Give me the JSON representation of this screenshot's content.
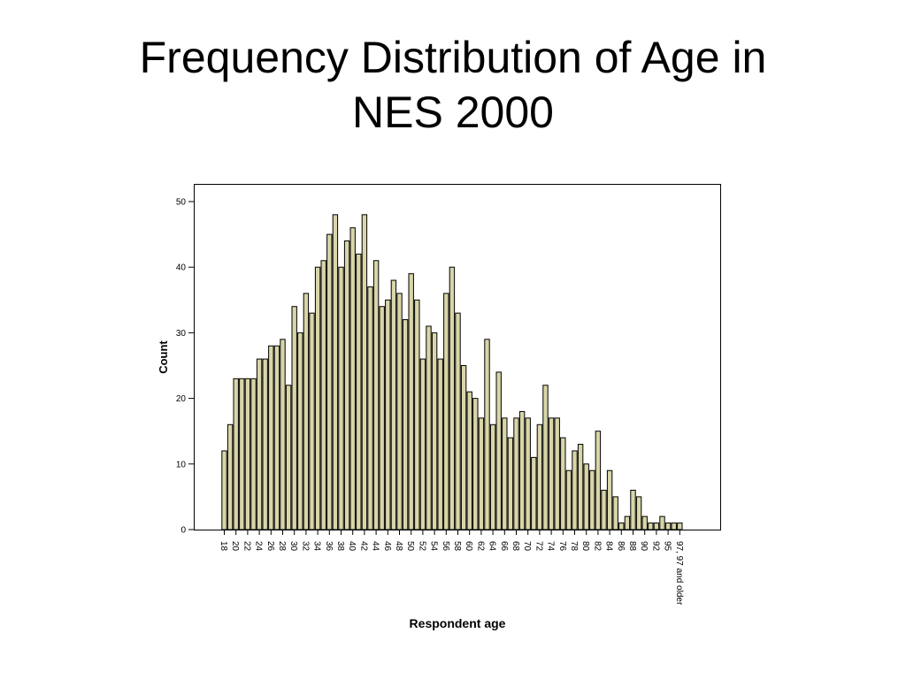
{
  "slide": {
    "title_line1": "Frequency Distribution of Age in",
    "title_line2": "NES 2000"
  },
  "colors": {
    "bar_fill": "#d8d5a8",
    "bar_stroke": "#000000",
    "background": "#ffffff"
  },
  "chart_data": {
    "type": "bar",
    "title": "",
    "xlabel": "Respondent age",
    "ylabel": "Count",
    "ylim": [
      0,
      50
    ],
    "yticks": [
      0,
      10,
      20,
      30,
      40,
      50
    ],
    "grid": false,
    "categories": [
      "18",
      "19",
      "20",
      "21",
      "22",
      "23",
      "24",
      "25",
      "26",
      "27",
      "28",
      "29",
      "30",
      "31",
      "32",
      "33",
      "34",
      "35",
      "36",
      "37",
      "38",
      "39",
      "40",
      "41",
      "42",
      "43",
      "44",
      "45",
      "46",
      "47",
      "48",
      "49",
      "50",
      "51",
      "52",
      "53",
      "54",
      "55",
      "56",
      "57",
      "58",
      "59",
      "60",
      "61",
      "62",
      "63",
      "64",
      "65",
      "66",
      "67",
      "68",
      "69",
      "70",
      "71",
      "72",
      "73",
      "74",
      "75",
      "76",
      "77",
      "78",
      "79",
      "80",
      "81",
      "82",
      "83",
      "84",
      "85",
      "86",
      "87",
      "88",
      "89",
      "90",
      "91",
      "92",
      "93",
      "95",
      "96",
      "97, 97 and older"
    ],
    "x_tick_labels": [
      "18",
      "20",
      "22",
      "24",
      "26",
      "28",
      "30",
      "32",
      "34",
      "36",
      "38",
      "40",
      "42",
      "44",
      "46",
      "48",
      "50",
      "52",
      "54",
      "56",
      "58",
      "60",
      "62",
      "64",
      "66",
      "68",
      "70",
      "72",
      "74",
      "76",
      "78",
      "80",
      "82",
      "84",
      "86",
      "88",
      "90",
      "92",
      "95",
      "97, 97 and older"
    ],
    "values": [
      12,
      16,
      23,
      23,
      23,
      23,
      26,
      26,
      28,
      28,
      29,
      22,
      34,
      30,
      36,
      33,
      40,
      41,
      45,
      48,
      40,
      44,
      46,
      42,
      48,
      37,
      41,
      34,
      35,
      38,
      36,
      32,
      39,
      35,
      26,
      31,
      30,
      26,
      36,
      40,
      33,
      25,
      21,
      20,
      17,
      29,
      16,
      24,
      17,
      14,
      17,
      18,
      17,
      11,
      16,
      22,
      17,
      17,
      14,
      9,
      12,
      13,
      10,
      9,
      15,
      6,
      9,
      5,
      1,
      2,
      6,
      5,
      2,
      1,
      1,
      2,
      1,
      1,
      1
    ]
  }
}
